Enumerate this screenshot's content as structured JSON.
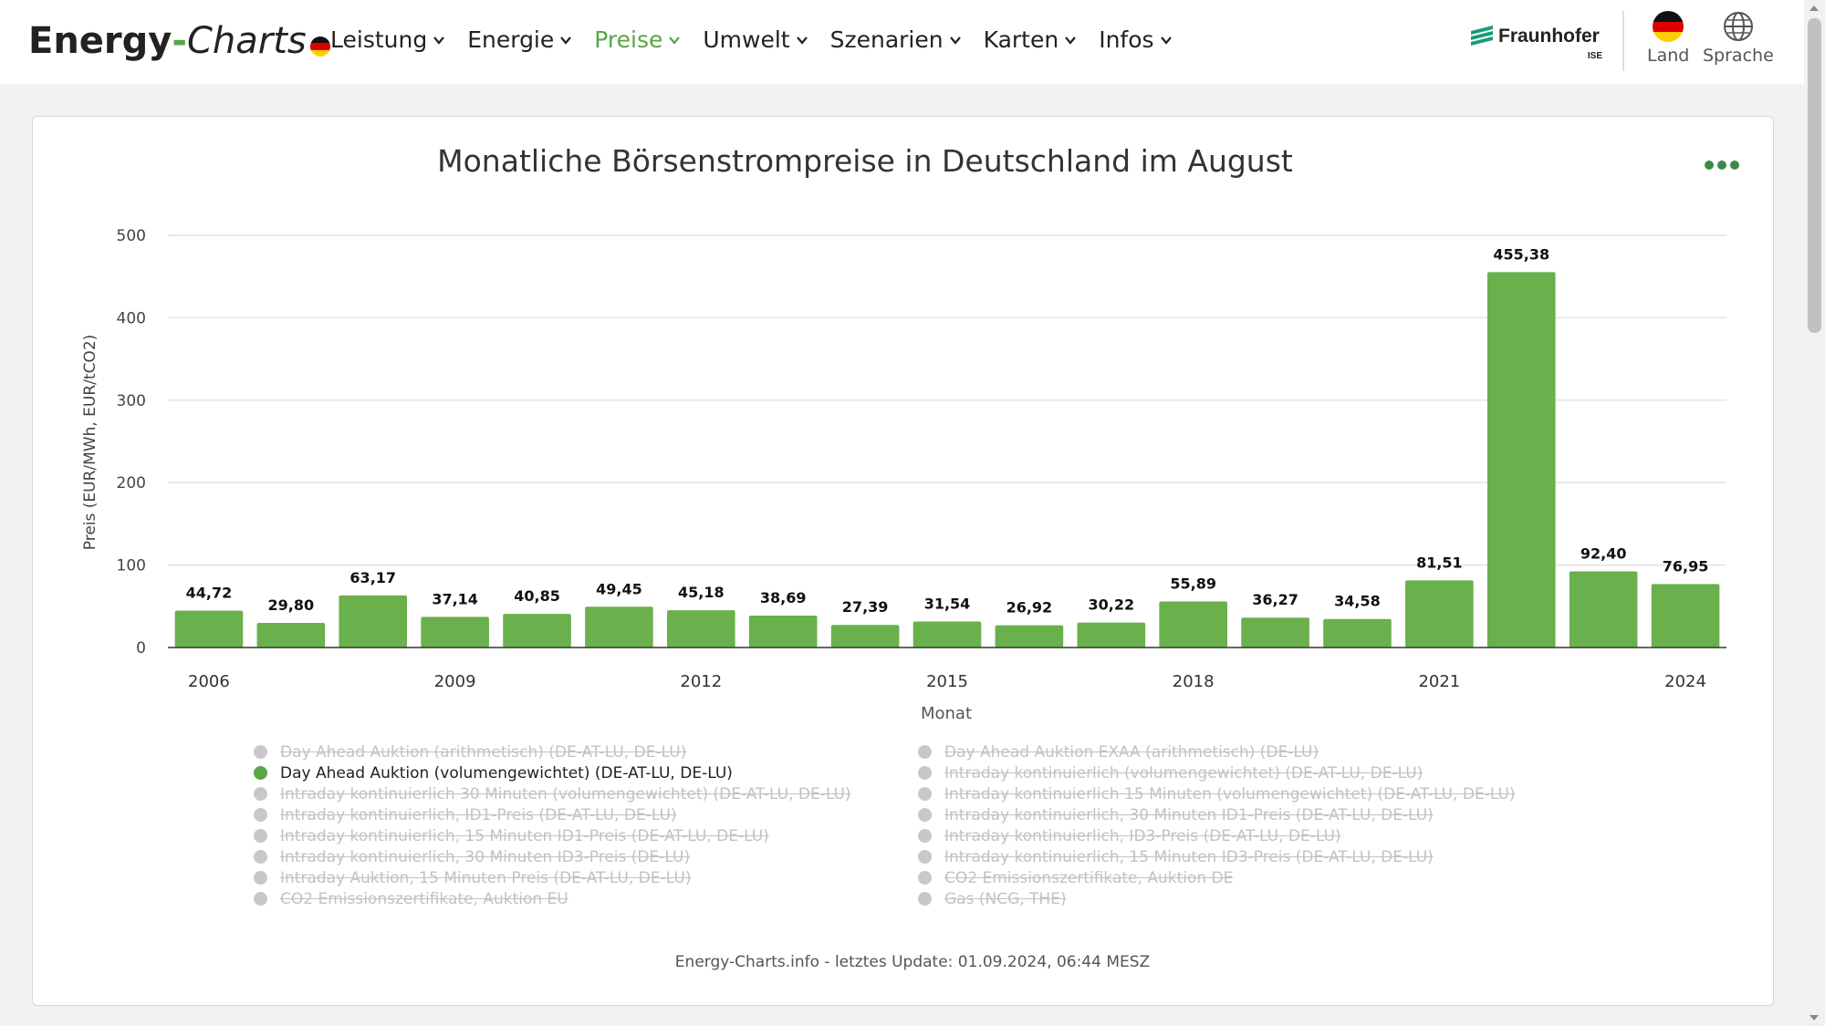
{
  "brand": {
    "part1": "Energy",
    "part2": "-",
    "part3": "Charts"
  },
  "nav": [
    "Leistung",
    "Energie",
    "Preise",
    "Umwelt",
    "Szenarien",
    "Karten",
    "Infos"
  ],
  "nav_active": "Preise",
  "partner": {
    "name": "Fraunhofer",
    "sub": "ISE"
  },
  "tools": {
    "country": "Land",
    "language": "Sprache"
  },
  "colors": {
    "accent": "#5aa545",
    "bar": "#6ab04c",
    "legend_off": "#c8c8c8"
  },
  "chart_data": {
    "type": "bar",
    "title": "Monatliche Börsenstrompreise in Deutschland im August",
    "xlabel": "Monat",
    "ylabel": "Preis (EUR/MWh, EUR/tCO2)",
    "ylim": [
      0,
      500
    ],
    "yticks": [
      "0",
      "100",
      "200",
      "300",
      "400",
      "500"
    ],
    "x_tick_labels": [
      "2006",
      "2009",
      "2012",
      "2015",
      "2018",
      "2021",
      "2024"
    ],
    "categories": [
      "2006",
      "2007",
      "2008",
      "2009",
      "2010",
      "2011",
      "2012",
      "2013",
      "2014",
      "2015",
      "2016",
      "2017",
      "2018",
      "2019",
      "2020",
      "2021",
      "2022",
      "2023",
      "2024"
    ],
    "series": [
      {
        "name": "Day Ahead Auktion (volumengewichtet) (DE-AT-LU, DE-LU)",
        "values": [
          44.72,
          29.8,
          63.17,
          37.14,
          40.85,
          49.45,
          45.18,
          38.69,
          27.39,
          31.54,
          26.92,
          30.22,
          55.89,
          36.27,
          34.58,
          81.51,
          455.38,
          92.4,
          76.95
        ],
        "labels": [
          "44,72",
          "29,80",
          "63,17",
          "37,14",
          "40,85",
          "49,45",
          "45,18",
          "38,69",
          "27,39",
          "31,54",
          "26,92",
          "30,22",
          "55,89",
          "36,27",
          "34,58",
          "81,51",
          "455,38",
          "92,40",
          "76,95"
        ]
      }
    ],
    "grid": true,
    "legend_position": "bottom"
  },
  "legend": {
    "left": [
      {
        "label": "Day Ahead Auktion (arithmetisch) (DE-AT-LU, DE-LU)",
        "active": false
      },
      {
        "label": "Day Ahead Auktion (volumengewichtet) (DE-AT-LU, DE-LU)",
        "active": true
      },
      {
        "label": "Intraday kontinuierlich 30 Minuten (volumengewichtet) (DE-AT-LU, DE-LU)",
        "active": false
      },
      {
        "label": "Intraday kontinuierlich, ID1-Preis (DE-AT-LU, DE-LU)",
        "active": false
      },
      {
        "label": "Intraday kontinuierlich, 15 Minuten ID1-Preis (DE-AT-LU, DE-LU)",
        "active": false
      },
      {
        "label": "Intraday kontinuierlich, 30 Minuten ID3-Preis (DE-LU)",
        "active": false
      },
      {
        "label": "Intraday Auktion, 15 Minuten Preis (DE-AT-LU, DE-LU)",
        "active": false
      },
      {
        "label": "CO2 Emissionszertifikate, Auktion EU",
        "active": false
      }
    ],
    "right": [
      {
        "label": "Day Ahead Auktion EXAA (arithmetisch) (DE-LU)",
        "active": false
      },
      {
        "label": "Intraday kontinuierlich (volumengewichtet) (DE-AT-LU, DE-LU)",
        "active": false
      },
      {
        "label": "Intraday kontinuierlich 15 Minuten (volumengewichtet) (DE-AT-LU, DE-LU)",
        "active": false
      },
      {
        "label": "Intraday kontinuierlich, 30 Minuten ID1-Preis (DE-AT-LU, DE-LU)",
        "active": false
      },
      {
        "label": "Intraday kontinuierlich, ID3-Preis (DE-AT-LU, DE-LU)",
        "active": false
      },
      {
        "label": "Intraday kontinuierlich, 15 Minuten ID3-Preis (DE-AT-LU, DE-LU)",
        "active": false
      },
      {
        "label": "CO2 Emissionszertifikate, Auktion DE",
        "active": false
      },
      {
        "label": "Gas (NCG, THE)",
        "active": false
      }
    ]
  },
  "footer": "Energy-Charts.info - letztes Update: 01.09.2024, 06:44 MESZ"
}
